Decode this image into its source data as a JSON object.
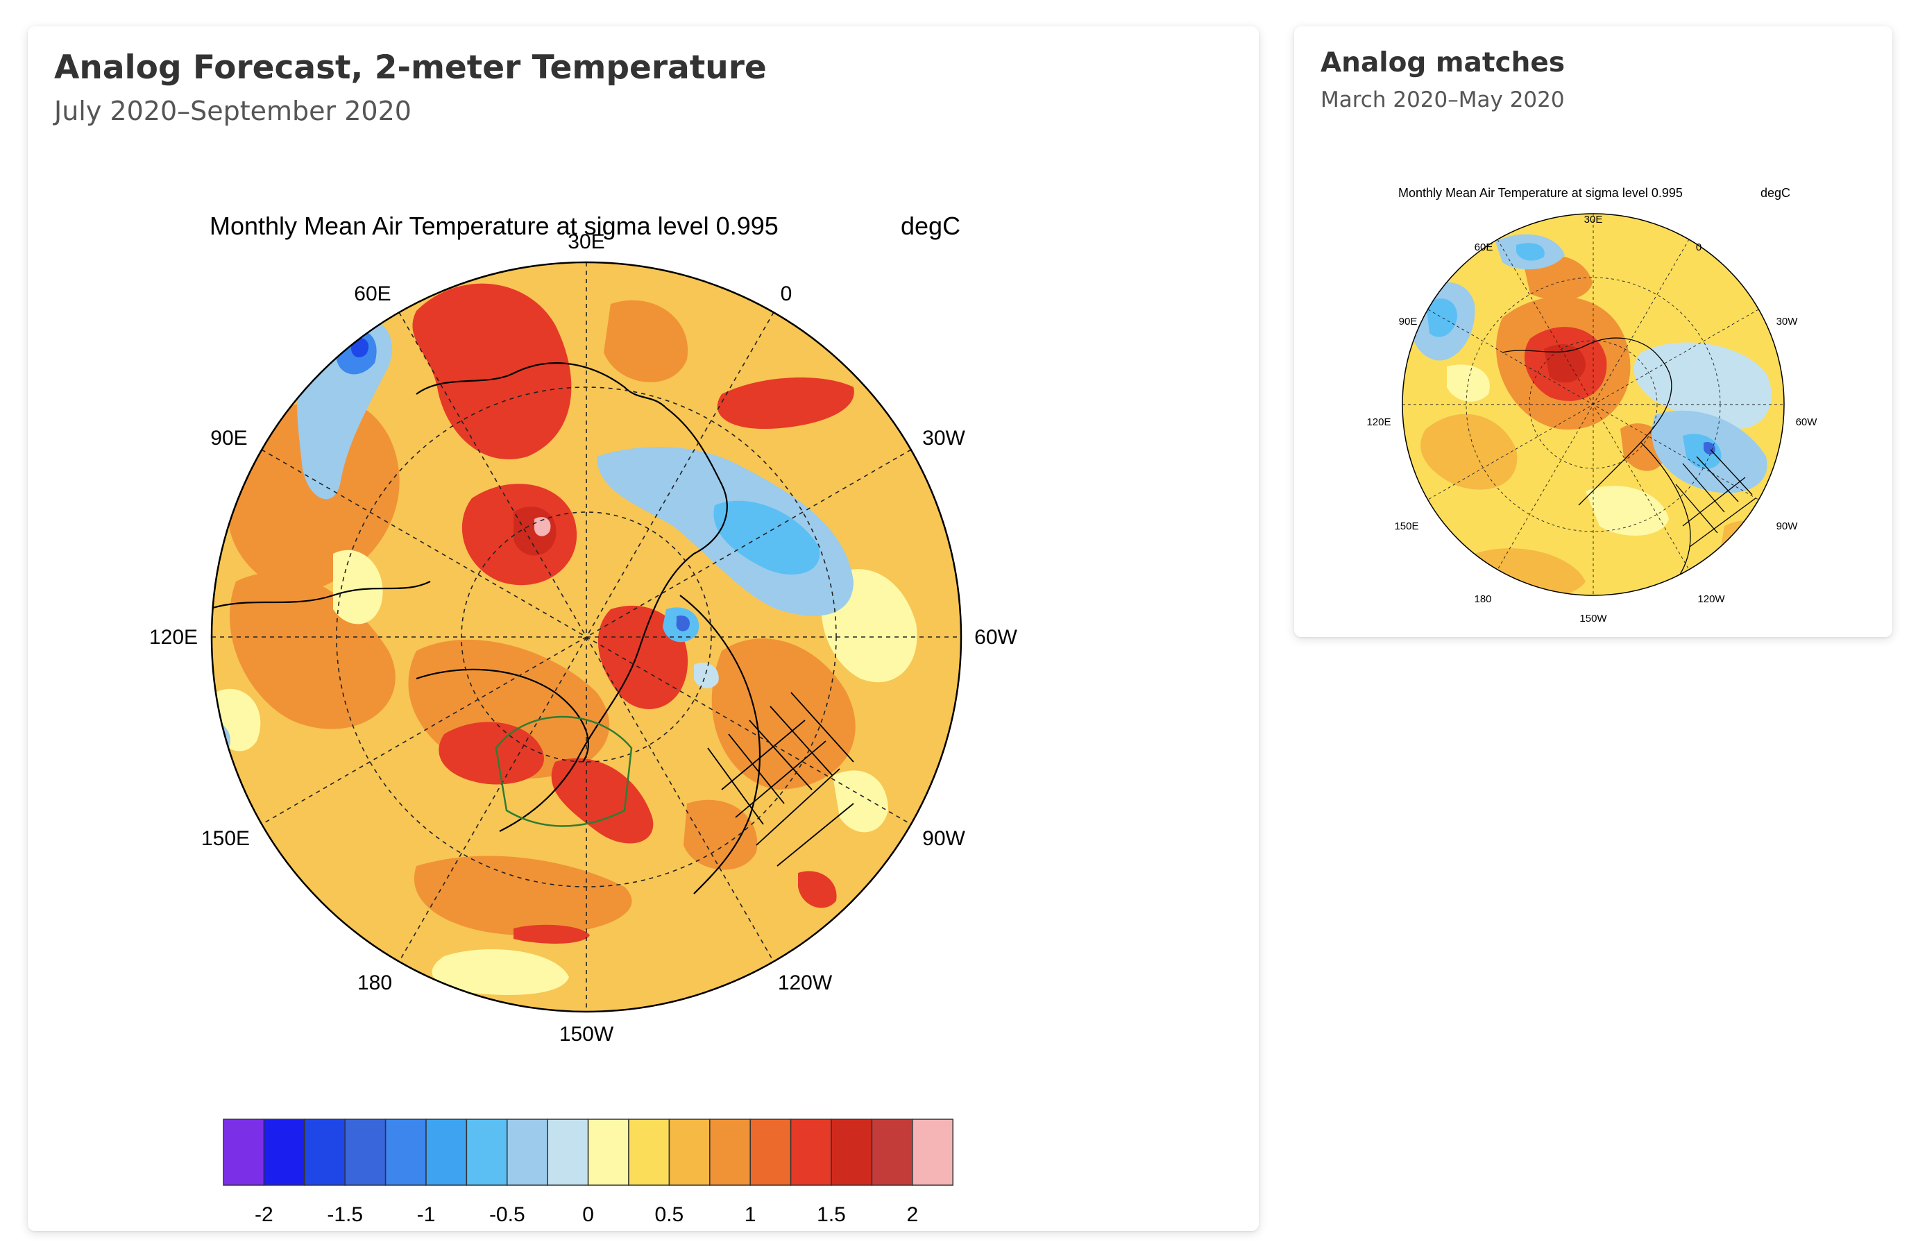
{
  "forecast": {
    "title": "Analog Forecast, 2-meter Temperature",
    "subtitle": "July 2020–September 2020",
    "map": {
      "title": "Monthly Mean Air Temperature at sigma level 0.995",
      "units": "degC",
      "lon_labels": [
        "30E",
        "0",
        "60E",
        "30W",
        "90E",
        "60W",
        "120E",
        "90W",
        "150E",
        "120W",
        "180",
        "150W"
      ]
    },
    "colorbar": {
      "tick_labels": [
        "-2",
        "-1.5",
        "-1",
        "-0.5",
        "0",
        "0.5",
        "1",
        "1.5",
        "2"
      ],
      "colors": [
        "#7b2fe6",
        "#1a1ff0",
        "#1f47e8",
        "#3a66dc",
        "#3c86ee",
        "#3ea3f0",
        "#5bbff4",
        "#9ccbec",
        "#c4e1ef",
        "#fef9a6",
        "#fbdd5a",
        "#f5b944",
        "#f09337",
        "#ec6a2c",
        "#e53a27",
        "#cf2a1e",
        "#c43c39",
        "#f5b4b6"
      ]
    }
  },
  "matches": {
    "title": "Analog matches",
    "subtitle": "March 2020–May 2020",
    "map": {
      "title": "Monthly Mean Air Temperature at sigma level 0.995",
      "units": "degC",
      "lon_labels": [
        "30E",
        "0",
        "60E",
        "30W",
        "90E",
        "60W",
        "120E",
        "90W",
        "150E",
        "120W",
        "180",
        "150W"
      ]
    }
  }
}
